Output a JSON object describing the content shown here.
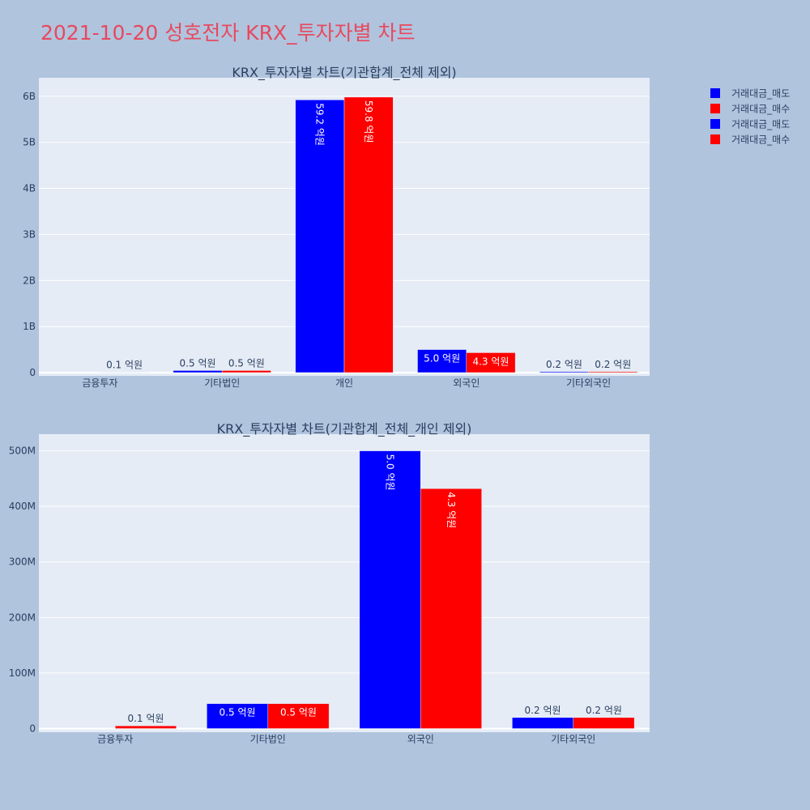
{
  "page_title": "2021-10-20 성호전자 KRX_투자자별 차트",
  "colors": {
    "background": "#b0c4de",
    "plot_bg": "#e5ecf6",
    "sell": "#0000ff",
    "buy": "#ff0000",
    "title_red": "#e8495e",
    "text": "#2a3f5f"
  },
  "legend": {
    "placement": "top-right",
    "items": [
      {
        "label": "거래대금_매도",
        "color": "#0000ff"
      },
      {
        "label": "거래대금_매수",
        "color": "#ff0000"
      },
      {
        "label": "거래대금_매도",
        "color": "#0000ff"
      },
      {
        "label": "거래대금_매수",
        "color": "#ff0000"
      }
    ]
  },
  "chart_data": [
    {
      "type": "bar",
      "title": "KRX_투자자별 차트(기관합계_전체 제외)",
      "categories": [
        "금융투자",
        "기타법인",
        "개인",
        "외국인",
        "기타외국인"
      ],
      "ylim": [
        0,
        6400000000
      ],
      "yticks": [
        0,
        1000000000,
        2000000000,
        3000000000,
        4000000000,
        5000000000,
        6000000000
      ],
      "ytick_labels": [
        "0",
        "1B",
        "2B",
        "3B",
        "4B",
        "5B",
        "6B"
      ],
      "grid": true,
      "series": [
        {
          "name": "거래대금_매도",
          "color": "#0000ff",
          "values": [
            0,
            45000000,
            5920000000,
            500000000,
            20000000
          ],
          "labels": [
            "",
            "0.5 억원",
            "59.2 억원",
            "5.0 억원",
            "0.2 억원"
          ]
        },
        {
          "name": "거래대금_매수",
          "color": "#ff0000",
          "values": [
            5000000,
            45000000,
            5980000000,
            432000000,
            20000000
          ],
          "labels": [
            "0.1 억원",
            "0.5 억원",
            "59.8 억원",
            "4.3 억원",
            "0.2 억원"
          ]
        }
      ]
    },
    {
      "type": "bar",
      "title": "KRX_투자자별 차트(기관합계_전체_개인 제외)",
      "categories": [
        "금융투자",
        "기타법인",
        "외국인",
        "기타외국인"
      ],
      "ylim": [
        0,
        530000000
      ],
      "yticks": [
        0,
        100000000,
        200000000,
        300000000,
        400000000,
        500000000
      ],
      "ytick_labels": [
        "0",
        "100M",
        "200M",
        "300M",
        "400M",
        "500M"
      ],
      "grid": true,
      "series": [
        {
          "name": "거래대금_매도",
          "color": "#0000ff",
          "values": [
            0,
            45000000,
            500000000,
            20000000
          ],
          "labels": [
            "",
            "0.5 억원",
            "5.0 억원",
            "0.2 억원"
          ]
        },
        {
          "name": "거래대금_매수",
          "color": "#ff0000",
          "values": [
            5000000,
            45000000,
            432000000,
            20000000
          ],
          "labels": [
            "0.1 억원",
            "0.5 억원",
            "4.3 억원",
            "0.2 억원"
          ]
        }
      ]
    }
  ]
}
